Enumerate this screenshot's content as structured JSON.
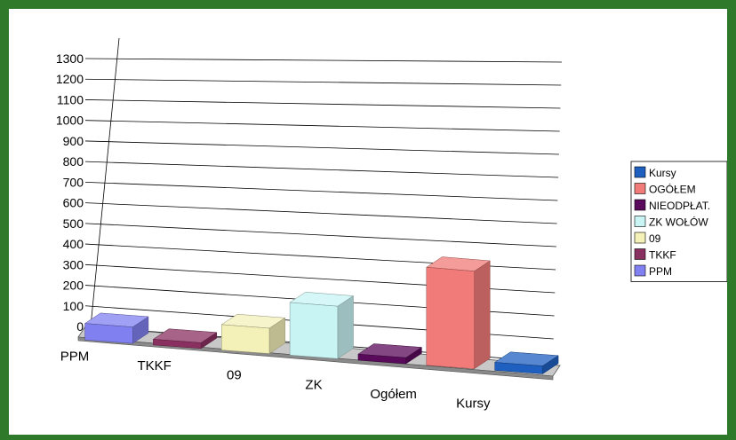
{
  "chart_data": {
    "type": "bar",
    "title": "",
    "xlabel": "",
    "ylabel": "",
    "ylim": [
      0,
      1300
    ],
    "yticks": [
      0,
      100,
      200,
      300,
      400,
      500,
      600,
      700,
      800,
      900,
      1000,
      1100,
      1200,
      1300
    ],
    "grid": true,
    "legend_position": "right",
    "categories": [
      "PPM",
      "TKKF",
      "09",
      "ZK",
      "Ogółem",
      "Kursy"
    ],
    "bars": [
      {
        "category": "PPM",
        "value": 80,
        "color": "#8080f0"
      },
      {
        "category": "TKKF",
        "value": 28,
        "color": "#8a3060"
      },
      {
        "category": "09",
        "value": 125,
        "color": "#f3f0b8"
      },
      {
        "category": "ZK",
        "value": 260,
        "color": "#c8f4f4"
      },
      {
        "category": "",
        "value": 30,
        "color": "#5a0a5a"
      },
      {
        "category": "Ogółem",
        "value": 490,
        "color": "#f07b78"
      },
      {
        "category": "Kursy",
        "value": 40,
        "color": "#1f5fc0"
      }
    ],
    "legend": [
      {
        "label": "Kursy",
        "color": "#1f5fc0"
      },
      {
        "label": "OGÓŁEM",
        "color": "#f07b78"
      },
      {
        "label": "NIEODPŁAT.",
        "color": "#5a0a5a"
      },
      {
        "label": "ZK WOŁÓW",
        "color": "#c8f4f4"
      },
      {
        "label": "09",
        "color": "#f3f0b8"
      },
      {
        "label": "TKKF",
        "color": "#8a3060"
      },
      {
        "label": "PPM",
        "color": "#8080f0"
      }
    ]
  }
}
